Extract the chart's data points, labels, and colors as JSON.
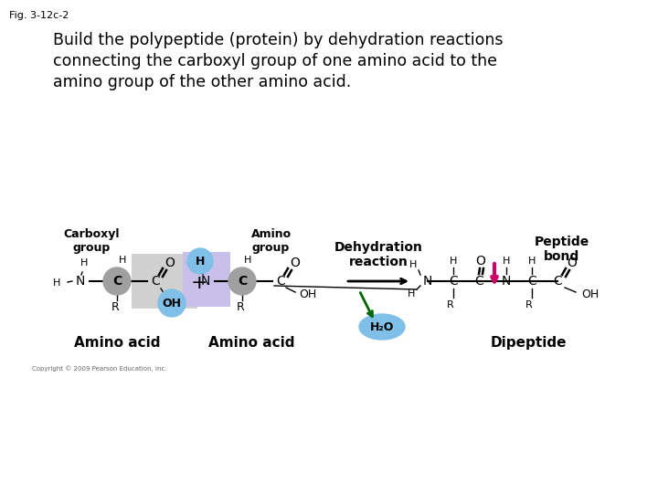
{
  "fig_label": "Fig. 3-12c-2",
  "title_line1": "Build the polypeptide (protein) by dehydration reactions",
  "title_line2": "connecting the carboxyl group of one amino acid to the",
  "title_line3": "amino group of the other amino acid.",
  "background_color": "#ffffff",
  "carboxyl_box_color": "#d0d0d0",
  "amino_box_color": "#c8c0e8",
  "oh_circle_color": "#80c0e8",
  "c_circle_color": "#a0a0a0",
  "h2o_ellipse_color": "#80c0e8",
  "peptide_bond_arrow_color": "#cc0066",
  "h2o_arrow_color": "#006600",
  "copyright_text": "Copyright © 2009 Pearson Education, Inc.",
  "carboxyl_label": "Carboxyl\ngroup",
  "amino_label": "Amino\ngroup",
  "amino_acid_label1": "Amino acid",
  "amino_acid_label2": "Amino acid",
  "dehydration_label": "Dehydration\nreaction",
  "peptide_bond_label": "Peptide\nbond",
  "dipeptide_label": "Dipeptide"
}
